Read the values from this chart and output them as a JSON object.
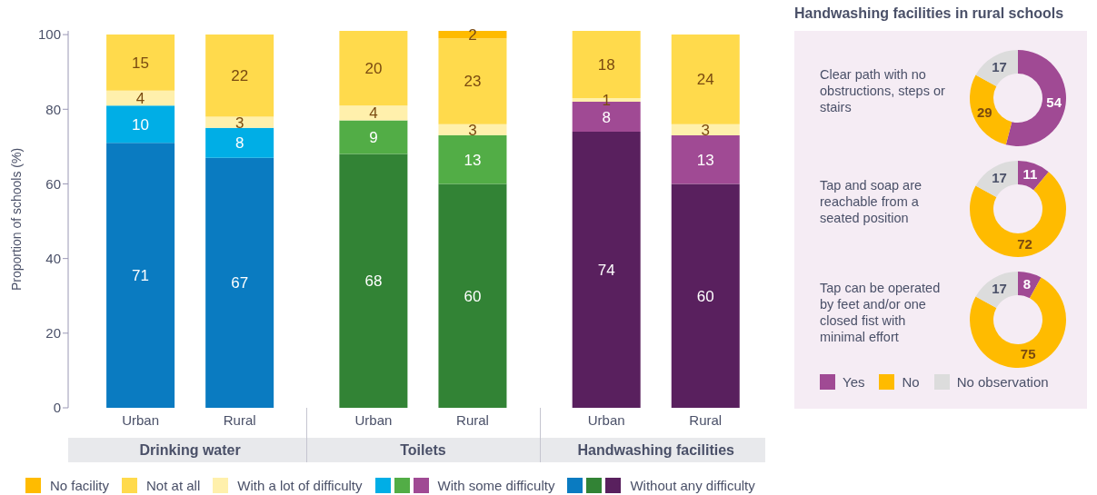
{
  "chart_data": [
    {
      "type": "bar",
      "stacked": true,
      "ylabel": "Proportion of schools (%)",
      "categories": [
        "Urban",
        "Rural",
        "Urban",
        "Rural",
        "Urban",
        "Rural"
      ],
      "annotations": [
        "Drinking water",
        "Toilets",
        "Handwashing facilities"
      ],
      "ylim": [
        0,
        101
      ],
      "yticks": [
        0,
        20,
        40,
        60,
        80,
        100
      ],
      "legend": "bottom",
      "data_labels": true,
      "series": [
        {
          "name": "Without any difficulty",
          "colors": [
            "#0a7bc1",
            "#0a7bc1",
            "#328335",
            "#328335",
            "#59205e",
            "#59205e"
          ],
          "values": [
            71,
            67,
            68,
            60,
            74,
            60
          ]
        },
        {
          "name": "With some difficulty",
          "colors": [
            "#00aee6",
            "#00aee6",
            "#52ad46",
            "#52ad46",
            "#a04a94",
            "#a04a94"
          ],
          "values": [
            10,
            8,
            9,
            13,
            8,
            13
          ]
        },
        {
          "name": "With a lot of difficulty",
          "color": "#fff0ac",
          "values": [
            4,
            3,
            4,
            3,
            1,
            3
          ]
        },
        {
          "name": "Not at all",
          "color": "#ffda4c",
          "values": [
            15,
            22,
            20,
            23,
            18,
            24
          ]
        },
        {
          "name": "No facility",
          "color": "#ffbb00",
          "values": [
            null,
            null,
            null,
            2,
            null,
            null
          ]
        }
      ]
    },
    {
      "type": "other",
      "title": "Handwashing facilities in rural schools"
    },
    {
      "type": "donut",
      "title": "Clear path with no obstructions, steps or stairs",
      "categories": [
        null,
        null,
        null
      ],
      "values": [
        54,
        29,
        17
      ],
      "colors": [
        "#a04a94",
        "#ffbb00",
        "#dcdcdc"
      ],
      "data_labels": true
    },
    {
      "type": "donut",
      "title": "Tap and soap are reachable from a seated position",
      "categories": [
        null,
        null,
        null
      ],
      "values": [
        11,
        72,
        17
      ],
      "colors": [
        "#a04a94",
        "#ffbb00",
        "#dcdcdc"
      ],
      "data_labels": true
    },
    {
      "type": "donut",
      "title": "Tap can be operated by feet and/or one closed fist with minimal effort",
      "categories": [
        "Yes",
        "No",
        "No observation"
      ],
      "values": [
        8,
        75,
        17
      ],
      "colors": [
        "#a04a94",
        "#ffbb00",
        "#dcdcdc"
      ],
      "data_labels": true,
      "legend": "bottom"
    }
  ]
}
